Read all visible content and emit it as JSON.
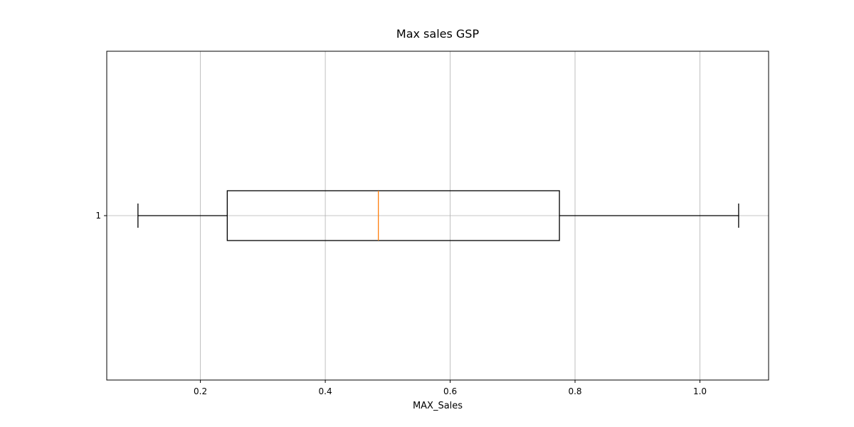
{
  "chart_data": {
    "type": "boxplot",
    "orientation": "horizontal",
    "title": "Max sales GSP",
    "xlabel": "MAX_Sales",
    "ylabel": "",
    "xlim": [
      0.05,
      1.11
    ],
    "x_ticks": [
      0.2,
      0.4,
      0.6,
      0.8,
      1.0
    ],
    "x_tick_labels": [
      "0.2",
      "0.4",
      "0.6",
      "0.8",
      "1.0"
    ],
    "y_tick_labels": [
      "1"
    ],
    "grid": true,
    "series": [
      {
        "category": "1",
        "whisker_low": 0.1,
        "q1": 0.243,
        "median": 0.485,
        "q3": 0.775,
        "whisker_high": 1.062
      }
    ],
    "colors": {
      "box": "#000000",
      "median": "#ff7f0e",
      "grid": "#b0b0b0",
      "frame": "#000000"
    }
  }
}
